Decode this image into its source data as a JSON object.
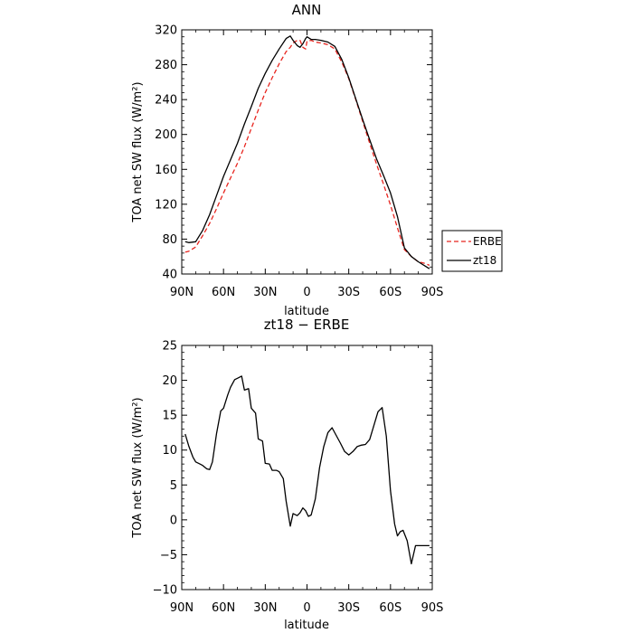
{
  "chart_data": [
    {
      "type": "line",
      "title": "ANN",
      "xlabel": "latitude",
      "ylabel": "TOA net SW flux (W/m²)",
      "x_tick_labels": [
        "90N",
        "60N",
        "30N",
        "0",
        "30S",
        "60S",
        "90S"
      ],
      "x_ticks": [
        90,
        60,
        30,
        0,
        -30,
        -60,
        -90
      ],
      "xlim": [
        90,
        -90
      ],
      "ylim": [
        40,
        320
      ],
      "y_ticks": [
        40,
        80,
        120,
        160,
        200,
        240,
        280,
        320
      ],
      "legend_position": "right",
      "series": [
        {
          "name": "ERBE",
          "color": "#e8251f",
          "dash": "dashed",
          "x": [
            87.5,
            85,
            80,
            75,
            70,
            65,
            60,
            55,
            50,
            45,
            40,
            35,
            30,
            25,
            20,
            15,
            12,
            10,
            7,
            5,
            3,
            1,
            0,
            -3,
            -6,
            -10,
            -15,
            -20,
            -25,
            -30,
            -35,
            -40,
            -45,
            -50,
            -55,
            -60,
            -65,
            -70,
            -75,
            -80,
            -85,
            -88
          ],
          "y": [
            65,
            66,
            71,
            84,
            98,
            115,
            133,
            150,
            167,
            186,
            207,
            228,
            248,
            265,
            281,
            295,
            300,
            305,
            308,
            308,
            300,
            298,
            307,
            308,
            306,
            305,
            303,
            298,
            283,
            264,
            240,
            215,
            190,
            166,
            143,
            119,
            93,
            68,
            60,
            54,
            52,
            50
          ]
        },
        {
          "name": "zt18",
          "color": "#000000",
          "dash": "solid",
          "x": [
            87.5,
            85,
            80,
            75,
            70,
            65,
            60,
            55,
            50,
            45,
            40,
            35,
            30,
            25,
            20,
            15,
            12,
            10,
            7,
            5,
            3,
            1,
            0,
            -3,
            -6,
            -10,
            -15,
            -20,
            -25,
            -30,
            -35,
            -40,
            -45,
            -50,
            -55,
            -60,
            -65,
            -70,
            -75,
            -80,
            -85,
            -88
          ],
          "y": [
            77,
            76,
            77,
            90,
            108,
            130,
            152,
            171,
            190,
            212,
            232,
            253,
            270,
            285,
            298,
            310,
            313,
            308,
            302,
            300,
            304,
            310,
            312,
            309,
            309,
            308,
            306,
            301,
            286,
            265,
            241,
            217,
            194,
            172,
            153,
            133,
            106,
            70,
            60,
            54,
            49,
            46
          ]
        }
      ]
    },
    {
      "type": "line",
      "title": "zt18 − ERBE",
      "xlabel": "latitude",
      "ylabel": "TOA net SW flux (W/m²)",
      "x_tick_labels": [
        "90N",
        "60N",
        "30N",
        "0",
        "30S",
        "60S",
        "90S"
      ],
      "x_ticks": [
        90,
        60,
        30,
        0,
        -30,
        -60,
        -90
      ],
      "xlim": [
        90,
        -90
      ],
      "ylim": [
        -10,
        25
      ],
      "y_ticks": [
        -10,
        -5,
        0,
        5,
        10,
        15,
        20,
        25
      ],
      "series": [
        {
          "color": "#000000",
          "dash": "solid",
          "x": [
            87.5,
            85,
            82,
            80,
            77,
            75,
            72,
            70,
            68,
            65,
            62,
            60,
            57,
            55,
            52,
            50,
            47,
            45,
            42,
            40,
            37,
            35,
            32,
            30,
            27,
            25,
            22,
            20,
            17,
            15,
            12,
            10,
            7,
            5,
            3,
            1,
            -1,
            -3,
            -6,
            -9,
            -12,
            -15,
            -18,
            -21,
            -24,
            -27,
            -30,
            -33,
            -36,
            -39,
            -42,
            -45,
            -48,
            -51,
            -54,
            -57,
            -60,
            -63,
            -65,
            -67,
            -69,
            -72,
            -75,
            -78,
            -81,
            -84,
            -86,
            -88
          ],
          "y": [
            12.3,
            10.6,
            9.0,
            8.3,
            8.0,
            7.8,
            7.3,
            7.2,
            8.3,
            12.4,
            15.6,
            16.0,
            17.9,
            19.0,
            20.1,
            20.3,
            20.6,
            18.6,
            18.8,
            16.0,
            15.3,
            11.6,
            11.3,
            8.1,
            8.0,
            7.1,
            7.1,
            6.9,
            5.9,
            2.7,
            -0.9,
            0.9,
            0.6,
            1.0,
            1.7,
            1.3,
            0.5,
            0.7,
            3.0,
            7.5,
            10.5,
            12.5,
            13.2,
            12.1,
            11.0,
            9.8,
            9.3,
            9.8,
            10.5,
            10.7,
            10.8,
            11.5,
            13.5,
            15.5,
            16.1,
            12.0,
            4.2,
            -0.6,
            -2.3,
            -1.7,
            -1.5,
            -3.0,
            -6.3,
            -3.7,
            -3.7,
            -3.7,
            -3.7,
            -3.7
          ]
        }
      ]
    }
  ]
}
